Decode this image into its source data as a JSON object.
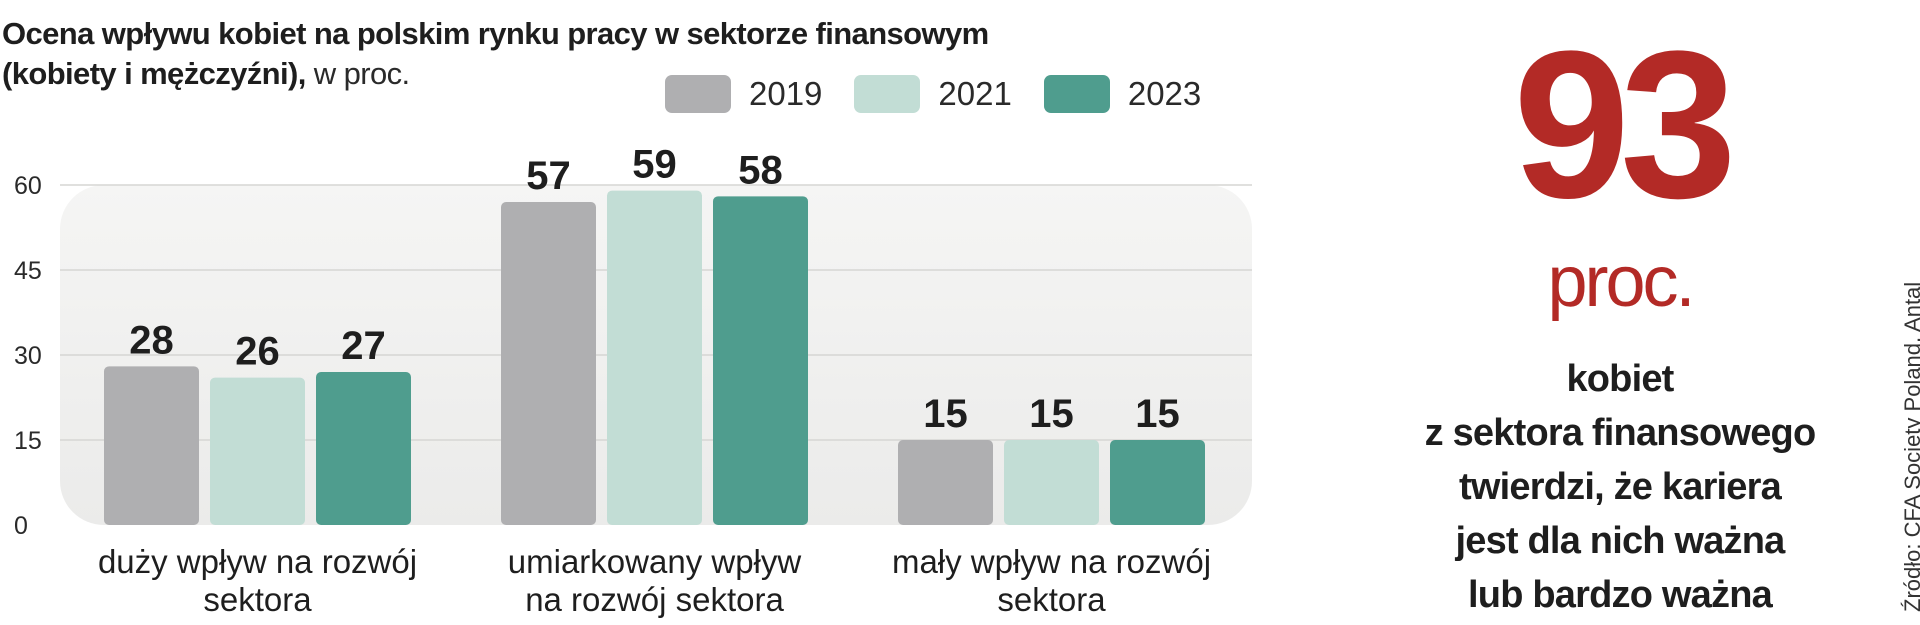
{
  "title": {
    "line1": "Ocena wpływu  kobiet na polskim rynku pracy w sektorze finansowym",
    "line2_bold": "(kobiety i mężczyźni),",
    "line2_unit": " w proc."
  },
  "legend": [
    {
      "label": "2019",
      "color": "#afafb1"
    },
    {
      "label": "2021",
      "color": "#c2ddd5"
    },
    {
      "label": "2023",
      "color": "#4f9d8e"
    }
  ],
  "chart_data": {
    "type": "bar",
    "categories": [
      [
        "duży wpływ na rozwój",
        "sektora"
      ],
      [
        "umiarkowany wpływ",
        "na rozwój sektora"
      ],
      [
        "mały wpływ na rozwój",
        "sektora"
      ]
    ],
    "series": [
      {
        "name": "2019",
        "values": [
          28,
          57,
          15
        ],
        "color": "#afafb1"
      },
      {
        "name": "2021",
        "values": [
          26,
          59,
          15
        ],
        "color": "#c2ddd5"
      },
      {
        "name": "2023",
        "values": [
          27,
          58,
          15
        ],
        "color": "#4f9d8e"
      }
    ],
    "yticks": [
      0,
      15,
      30,
      45,
      60
    ],
    "ylim": [
      0,
      60
    ],
    "grid": true,
    "legend_position": "top-right"
  },
  "highlight": {
    "number": "93",
    "unit": "proc.",
    "text": [
      "kobiet",
      "z sektora finansowego",
      "twierdzi, że kariera",
      "jest dla nich ważna",
      "lub bardzo ważna"
    ],
    "color": "#b32a26"
  },
  "source": "Źródło: CFA Society Poland, Antal"
}
